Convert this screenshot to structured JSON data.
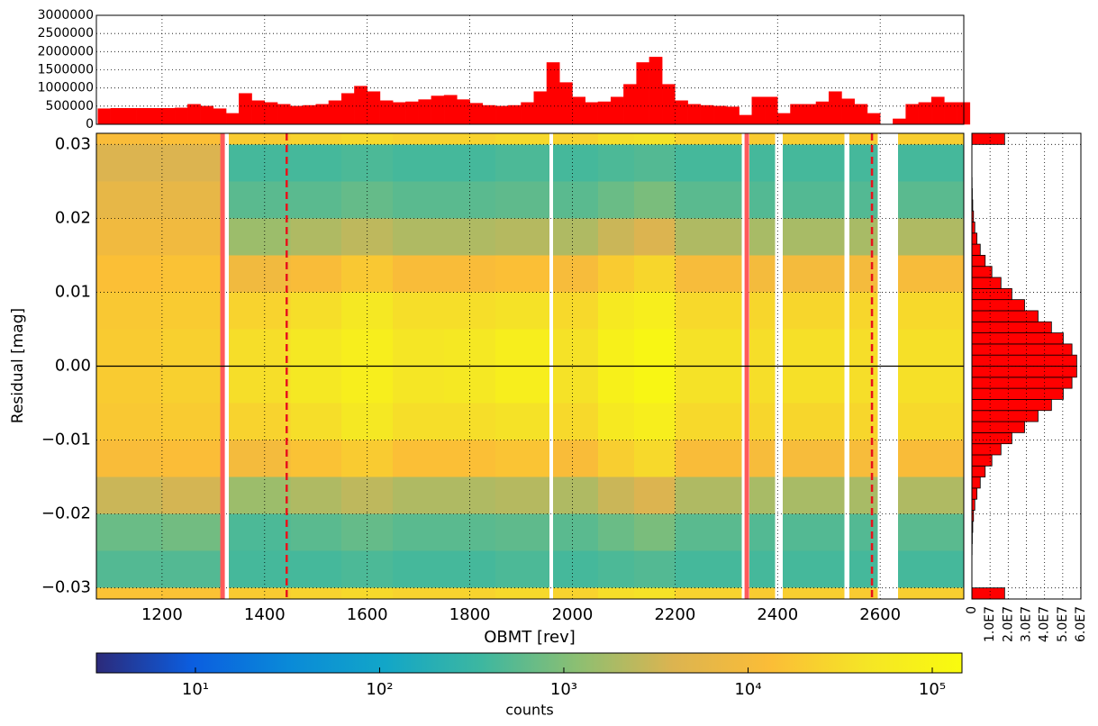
{
  "chart_data": [
    {
      "type": "heatmap",
      "xlabel": "OBMT [rev]",
      "ylabel": "Residual [mag]",
      "xlim": [
        1072,
        2763
      ],
      "ylim": [
        -0.0315,
        0.0315
      ],
      "xticks": [
        1200,
        1400,
        1600,
        1800,
        2000,
        2200,
        2400,
        2600
      ],
      "yticks": [
        {
          "value": -0.03,
          "label": "−0.03"
        },
        {
          "value": -0.02,
          "label": "−0.02"
        },
        {
          "value": -0.01,
          "label": "−0.01"
        },
        {
          "value": 0,
          "label": "0.00"
        },
        0.01,
        0.02,
        0.03
      ],
      "grid": true,
      "x_bins": [
        1072,
        1200,
        1320,
        1330,
        1450,
        1550,
        1650,
        1750,
        1850,
        1955,
        1962,
        2050,
        2120,
        2200,
        2330,
        2345,
        2395,
        2410,
        2530,
        2540,
        2595,
        2635,
        2763
      ],
      "y_bins": [
        -0.0315,
        -0.03,
        -0.025,
        -0.02,
        -0.015,
        -0.01,
        -0.005,
        0,
        0.005,
        0.01,
        0.015,
        0.02,
        0.025,
        0.03,
        0.0315
      ],
      "z": [
        [
          15000,
          500,
          700,
          3000,
          12000,
          18000,
          20000,
          20000,
          18000,
          14000,
          9000,
          6000,
          4000,
          12000
        ],
        [
          15000,
          500,
          800,
          3500,
          13000,
          20000,
          23000,
          23000,
          20000,
          15000,
          9000,
          6000,
          4000,
          14000
        ],
        null,
        [
          20000,
          400,
          450,
          1500,
          10000,
          25000,
          35000,
          35000,
          25000,
          9000,
          1500,
          550,
          400,
          20000
        ],
        [
          25000,
          400,
          550,
          2000,
          15000,
          35000,
          50000,
          50000,
          35000,
          12000,
          2000,
          550,
          400,
          25000
        ],
        [
          30000,
          450,
          650,
          2500,
          20000,
          50000,
          70000,
          70000,
          50000,
          18000,
          2500,
          650,
          450,
          30000
        ],
        [
          25000,
          400,
          550,
          2000,
          14000,
          35000,
          45000,
          45000,
          35000,
          12000,
          2000,
          550,
          400,
          25000
        ],
        [
          25000,
          400,
          550,
          2000,
          14000,
          35000,
          50000,
          50000,
          35000,
          12000,
          2000,
          550,
          400,
          25000
        ],
        [
          30000,
          450,
          600,
          2200,
          16000,
          40000,
          70000,
          70000,
          40000,
          14000,
          2200,
          600,
          450,
          30000
        ],
        null,
        [
          25000,
          400,
          550,
          2000,
          12000,
          30000,
          40000,
          40000,
          30000,
          11000,
          2000,
          550,
          400,
          25000
        ],
        [
          35000,
          450,
          700,
          3000,
          22000,
          55000,
          80000,
          80000,
          55000,
          20000,
          3000,
          700,
          450,
          35000
        ],
        [
          40000,
          500,
          900,
          4000,
          30000,
          70000,
          110000,
          110000,
          70000,
          28000,
          4000,
          900,
          500,
          40000
        ],
        [
          25000,
          400,
          550,
          2000,
          12000,
          30000,
          40000,
          40000,
          30000,
          11000,
          2000,
          550,
          400,
          25000
        ],
        null,
        [
          20000,
          400,
          500,
          1800,
          11000,
          28000,
          35000,
          35000,
          28000,
          10000,
          1800,
          500,
          400,
          20000
        ],
        null,
        [
          22000,
          400,
          500,
          1800,
          11000,
          28000,
          38000,
          38000,
          28000,
          10000,
          1800,
          500,
          400,
          22000
        ],
        null,
        [
          20000,
          400,
          500,
          1800,
          11000,
          28000,
          35000,
          35000,
          28000,
          10000,
          1800,
          500,
          400,
          20000
        ],
        null,
        [
          22000,
          400,
          550,
          2000,
          12000,
          30000,
          38000,
          38000,
          30000,
          11000,
          2000,
          550,
          400,
          22000
        ]
      ],
      "colormap": [
        "#2c2a7a",
        "#0b5ee0",
        "#0a8ad8",
        "#12a6c8",
        "#3db7a0",
        "#8cbf72",
        "#dcb450",
        "#fbbd37",
        "#f5e526",
        "#f9fb0e"
      ],
      "colorbar": {
        "label": "counts",
        "log": true,
        "lim": [
          2.9,
          145000
        ],
        "ticks": [
          {
            "value": 10,
            "label": "10¹"
          },
          {
            "value": 100,
            "label": "10²"
          },
          {
            "value": 1000,
            "label": "10³"
          },
          {
            "value": 10000,
            "label": "10⁴"
          },
          {
            "value": 100000,
            "label": "10⁵"
          }
        ]
      },
      "vlines": [
        {
          "x": 1318,
          "style": "solid",
          "color": "#ff5a5a"
        },
        {
          "x": 2340,
          "style": "solid",
          "color": "#ff5a5a"
        },
        {
          "x": 1443,
          "style": "dashed",
          "color": "#e8121b"
        },
        {
          "x": 2584,
          "style": "dashed",
          "color": "#e8121b"
        }
      ],
      "hline": {
        "y": 0,
        "color": "#000000"
      }
    },
    {
      "type": "histogram",
      "orientation": "vertical",
      "color": "#ff0000",
      "xlim": [
        1072,
        2763
      ],
      "ylim": [
        0,
        3000000
      ],
      "xticks": [
        1200,
        1400,
        1600,
        1800,
        2000,
        2200,
        2400,
        2600
      ],
      "yticks": [
        0,
        500000,
        1000000,
        1500000,
        2000000,
        2500000,
        3000000
      ],
      "grid": true,
      "bins": [
        1075,
        1100,
        1125,
        1150,
        1175,
        1200,
        1225,
        1250,
        1275,
        1300,
        1325,
        1350,
        1375,
        1400,
        1425,
        1450,
        1475,
        1500,
        1525,
        1550,
        1575,
        1600,
        1625,
        1650,
        1675,
        1700,
        1725,
        1750,
        1775,
        1800,
        1825,
        1850,
        1875,
        1900,
        1925,
        1950,
        1975,
        2000,
        2025,
        2050,
        2075,
        2100,
        2125,
        2150,
        2175,
        2200,
        2225,
        2250,
        2275,
        2300,
        2325,
        2350,
        2375,
        2400,
        2425,
        2450,
        2475,
        2500,
        2525,
        2550,
        2575,
        2600,
        2625,
        2650,
        2675,
        2700,
        2725,
        2750,
        2775
      ],
      "values": [
        430000,
        440000,
        440000,
        440000,
        440000,
        440000,
        450000,
        550000,
        500000,
        430000,
        300000,
        850000,
        650000,
        600000,
        550000,
        500000,
        520000,
        550000,
        650000,
        850000,
        1050000,
        900000,
        650000,
        600000,
        620000,
        680000,
        780000,
        800000,
        680000,
        580000,
        520000,
        500000,
        520000,
        600000,
        900000,
        1700000,
        1150000,
        750000,
        600000,
        620000,
        750000,
        1100000,
        1700000,
        1850000,
        1100000,
        650000,
        550000,
        520000,
        500000,
        480000,
        250000,
        750000,
        750000,
        300000,
        550000,
        550000,
        620000,
        900000,
        700000,
        550000,
        300000,
        0,
        150000,
        550000,
        600000,
        750000,
        600000,
        600000
      ]
    },
    {
      "type": "histogram",
      "orientation": "horizontal",
      "color": "#ff0000",
      "edgecolor": "#000000",
      "xlim": [
        0,
        60000000
      ],
      "ylim": [
        -0.0315,
        0.0315
      ],
      "xticks": [
        0,
        {
          "value": 10000000,
          "label": "1.0E7"
        },
        {
          "value": 20000000,
          "label": "2.0E7"
        },
        {
          "value": 30000000,
          "label": "3.0E7"
        },
        {
          "value": 40000000,
          "label": "4.0E7"
        },
        {
          "value": 50000000,
          "label": "5.0E7"
        },
        {
          "value": 60000000,
          "label": "6.0E7"
        }
      ],
      "yticks": [
        -0.03,
        -0.02,
        -0.01,
        0,
        0.01,
        0.02,
        0.03
      ],
      "grid": true,
      "bins": [
        -0.0315,
        -0.03,
        -0.0285,
        -0.027,
        -0.0255,
        -0.024,
        -0.0225,
        -0.021,
        -0.0195,
        -0.018,
        -0.0165,
        -0.015,
        -0.0135,
        -0.012,
        -0.0105,
        -0.009,
        -0.0075,
        -0.006,
        -0.0045,
        -0.003,
        -0.0015,
        0,
        0.0015,
        0.003,
        0.0045,
        0.006,
        0.0075,
        0.009,
        0.0105,
        0.012,
        0.0135,
        0.015,
        0.0165,
        0.018,
        0.0195,
        0.021,
        0.0225,
        0.024,
        0.0255,
        0.027,
        0.0285,
        0.03,
        0.0315
      ],
      "values": [
        18000000,
        10000,
        22000,
        51000,
        112000,
        232000,
        464000,
        887000,
        1600000,
        2780000,
        4600000,
        7300000,
        11000000,
        16000000,
        22000000,
        29000000,
        36400000,
        43800000,
        50300000,
        55100000,
        57700000,
        57700000,
        55100000,
        50300000,
        43800000,
        36400000,
        29000000,
        22000000,
        16000000,
        11000000,
        7300000,
        4600000,
        2780000,
        1600000,
        887000,
        464000,
        232000,
        112000,
        51000,
        22000,
        10000,
        18000000
      ]
    }
  ]
}
